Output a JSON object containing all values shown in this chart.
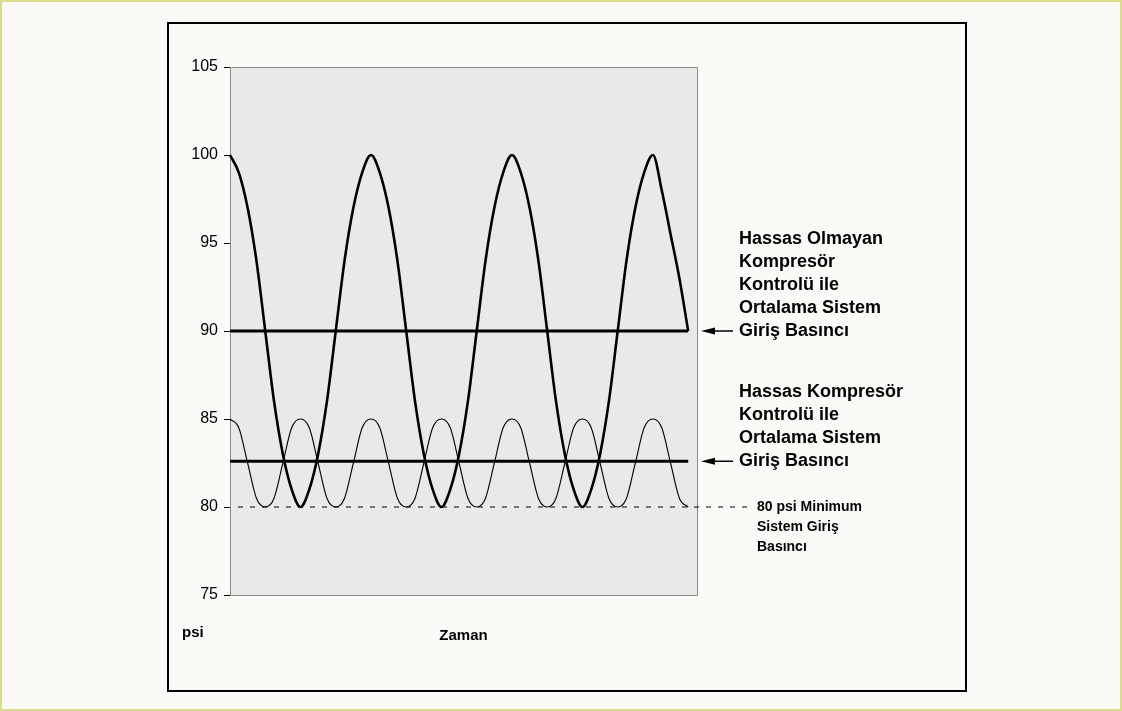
{
  "chart_data": {
    "type": "line",
    "xlabel": "Zaman",
    "ylabel": "psi",
    "categories": [
      null,
      null,
      null,
      null,
      null,
      null,
      null,
      null,
      null,
      null,
      null,
      null,
      null,
      null,
      null,
      null,
      null,
      null,
      null,
      null,
      null,
      null,
      null,
      null,
      null,
      null,
      null,
      null,
      null,
      null,
      null,
      null,
      null,
      null,
      null,
      null,
      null,
      null,
      null,
      null,
      null,
      null,
      null,
      null,
      null,
      null,
      null,
      null,
      null,
      null,
      null,
      null,
      null,
      null
    ],
    "series": [
      {
        "color": "#000000",
        "values": [
          100,
          99,
          97,
          94,
          90,
          86,
          83,
          81,
          80,
          81,
          83,
          86,
          90,
          94,
          97,
          99,
          100,
          99,
          97,
          94,
          90,
          86,
          83,
          81,
          80,
          81,
          83,
          86,
          90,
          94,
          97,
          99,
          100,
          99,
          97,
          94,
          90,
          86,
          83,
          81,
          80,
          81,
          83,
          86,
          90,
          94,
          97,
          99,
          100,
          98,
          95.5,
          93,
          90,
          null
        ]
      },
      {
        "color": "#000000",
        "values": [
          85,
          84.5,
          82.5,
          80.5,
          80,
          80.5,
          82.5,
          84.5,
          85,
          84.5,
          82.5,
          80.5,
          80,
          80.5,
          82.5,
          84.5,
          85,
          84.5,
          82.5,
          80.5,
          80,
          80.5,
          82.5,
          84.5,
          85,
          84.5,
          82.5,
          80.5,
          80,
          80.5,
          82.5,
          84.5,
          85,
          84.5,
          82.5,
          80.5,
          80,
          80.5,
          82.5,
          84.5,
          85,
          84.5,
          82.5,
          80.5,
          80,
          80.5,
          82.5,
          84.5,
          85,
          84.5,
          82.5,
          80.5,
          80,
          null
        ]
      }
    ],
    "ref_lines": [
      {
        "axis": "y",
        "value": 90,
        "label": "Hassas Olmayan Kompresör Kontrolü ile Ortalama Sistem Giriş Basıncı",
        "color": "#000000"
      },
      {
        "axis": "y",
        "value": 82.6,
        "label": "Hassas Kompresör Kontrolü ile Ortalama Sistem Giriş Basıncı",
        "color": "#000000"
      },
      {
        "axis": "y",
        "value": 80,
        "label": "80 psi Minimum Sistem Giriş Basıncı",
        "color": "#000000",
        "line_style": "dashed"
      }
    ],
    "ylim": [
      75,
      105
    ],
    "yticks": [
      75,
      80,
      85,
      90,
      95,
      100,
      105
    ],
    "grid": false,
    "legend": false,
    "marker": "none",
    "line_style": "solid",
    "tick_labels": "y"
  }
}
